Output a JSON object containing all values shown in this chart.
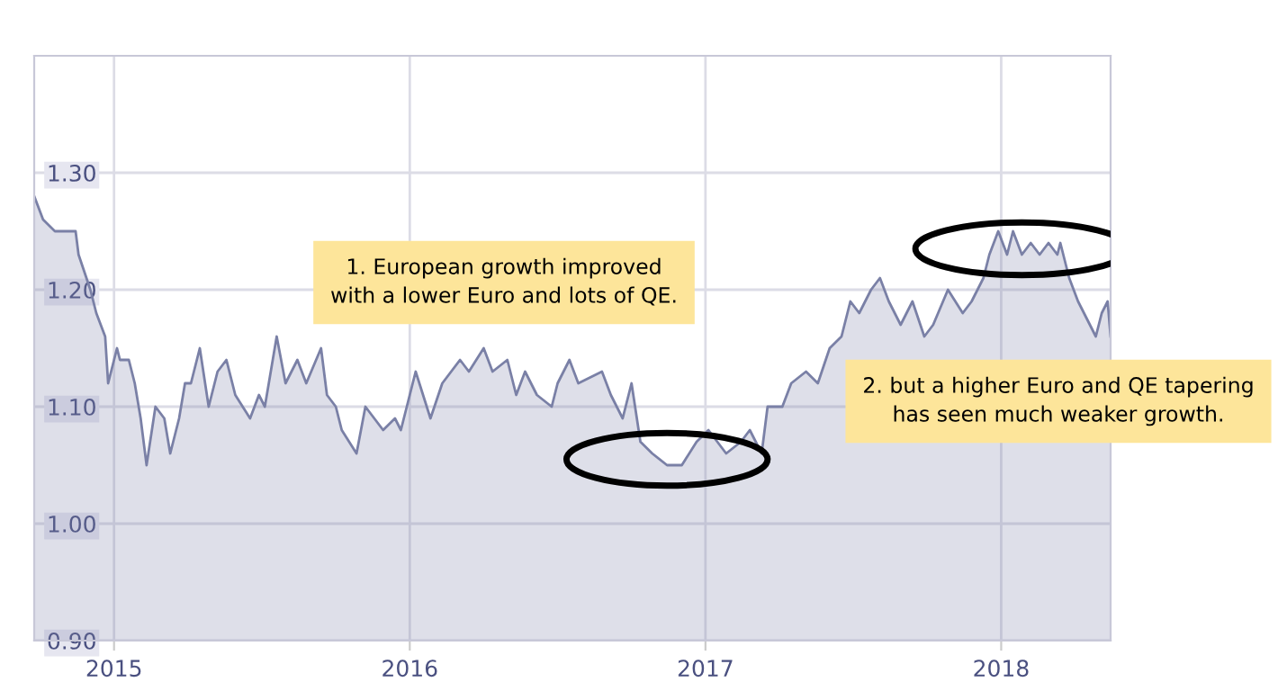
{
  "chart_data": {
    "type": "area",
    "x": [
      2014.73,
      2014.76,
      2014.8,
      2014.87,
      2014.88,
      2014.92,
      2014.94,
      2014.97,
      2014.98,
      2015.01,
      2015.02,
      2015.05,
      2015.07,
      2015.09,
      2015.11,
      2015.14,
      2015.17,
      2015.19,
      2015.22,
      2015.24,
      2015.26,
      2015.29,
      2015.32,
      2015.35,
      2015.38,
      2015.41,
      2015.46,
      2015.49,
      2015.51,
      2015.55,
      2015.58,
      2015.62,
      2015.65,
      2015.7,
      2015.72,
      2015.75,
      2015.77,
      2015.82,
      2015.85,
      2015.91,
      2015.95,
      2015.97,
      2016.02,
      2016.07,
      2016.11,
      2016.17,
      2016.2,
      2016.25,
      2016.28,
      2016.33,
      2016.36,
      2016.39,
      2016.43,
      2016.48,
      2016.5,
      2016.54,
      2016.57,
      2016.65,
      2016.68,
      2016.72,
      2016.75,
      2016.78,
      2016.82,
      2016.87,
      2016.92,
      2016.97,
      2017.01,
      2017.07,
      2017.12,
      2017.15,
      2017.17,
      2017.19,
      2017.21,
      2017.26,
      2017.29,
      2017.34,
      2017.38,
      2017.42,
      2017.46,
      2017.49,
      2017.52,
      2017.56,
      2017.59,
      2017.62,
      2017.66,
      2017.7,
      2017.74,
      2017.77,
      2017.82,
      2017.87,
      2017.9,
      2017.94,
      2017.96,
      2017.99,
      2018.02,
      2018.04,
      2018.07,
      2018.1,
      2018.13,
      2018.16,
      2018.19,
      2018.2,
      2018.23,
      2018.26,
      2018.28,
      2018.3,
      2018.32,
      2018.34,
      2018.36,
      2018.37
    ],
    "series": [
      {
        "color": "#7a80a6",
        "values": [
          1.28,
          1.26,
          1.25,
          1.25,
          1.23,
          1.2,
          1.18,
          1.16,
          1.12,
          1.15,
          1.14,
          1.14,
          1.12,
          1.09,
          1.05,
          1.1,
          1.09,
          1.06,
          1.09,
          1.12,
          1.12,
          1.15,
          1.1,
          1.13,
          1.14,
          1.11,
          1.09,
          1.11,
          1.1,
          1.16,
          1.12,
          1.14,
          1.12,
          1.15,
          1.11,
          1.1,
          1.08,
          1.06,
          1.1,
          1.08,
          1.09,
          1.08,
          1.13,
          1.09,
          1.12,
          1.14,
          1.13,
          1.15,
          1.13,
          1.14,
          1.11,
          1.13,
          1.11,
          1.1,
          1.12,
          1.14,
          1.12,
          1.13,
          1.11,
          1.09,
          1.12,
          1.07,
          1.06,
          1.05,
          1.05,
          1.07,
          1.08,
          1.06,
          1.07,
          1.08,
          1.07,
          1.06,
          1.1,
          1.1,
          1.12,
          1.13,
          1.12,
          1.15,
          1.16,
          1.19,
          1.18,
          1.2,
          1.21,
          1.19,
          1.17,
          1.19,
          1.16,
          1.17,
          1.2,
          1.18,
          1.19,
          1.21,
          1.23,
          1.25,
          1.23,
          1.25,
          1.23,
          1.24,
          1.23,
          1.24,
          1.23,
          1.24,
          1.21,
          1.19,
          1.18,
          1.17,
          1.16,
          1.18,
          1.19,
          1.16
        ]
      }
    ],
    "xlim": [
      2014.73,
      2018.37
    ],
    "ylim": [
      0.9,
      1.4
    ],
    "xticks": [
      2015,
      2016,
      2017,
      2018
    ],
    "yticks": [
      {
        "value": 0.9,
        "label": "0.90"
      },
      {
        "value": 1.0,
        "label": "1.00"
      },
      {
        "value": 1.1,
        "label": "1.10"
      },
      {
        "value": 1.2,
        "label": "1.20"
      },
      {
        "value": 1.3,
        "label": "1.30"
      }
    ],
    "grid": true,
    "annotations": [
      "1. European growth improved\nwith a lower Euro and lots of QE.",
      "2. but a higher Euro and QE tapering\nhas seen much weaker growth."
    ]
  }
}
